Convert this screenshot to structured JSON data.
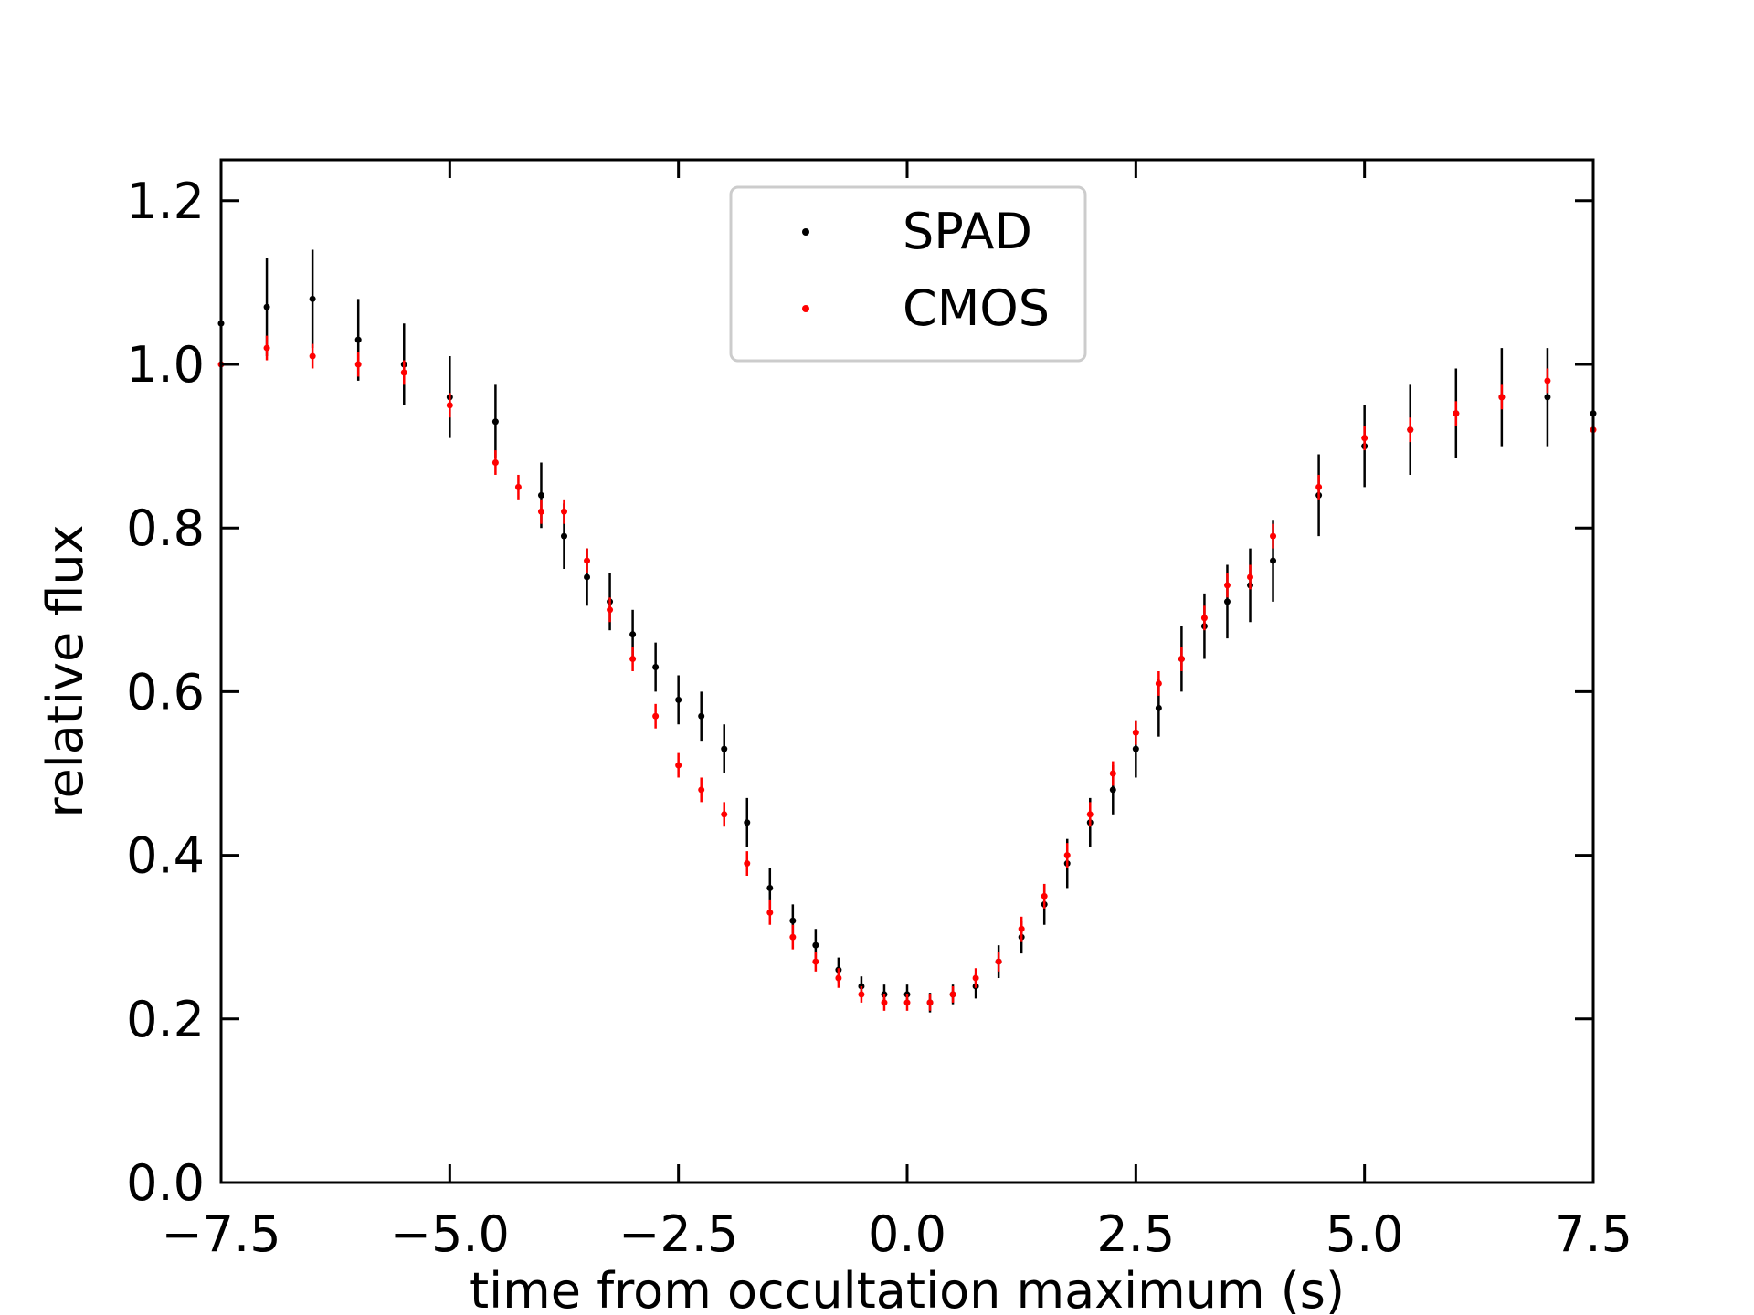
{
  "chart_data": {
    "type": "scatter",
    "title": "",
    "xlabel": "time from occultation maximum (s)",
    "ylabel": "relative flux",
    "xlim": [
      -7.5,
      7.5
    ],
    "ylim": [
      0.0,
      1.25
    ],
    "xticks": [
      -7.5,
      -5.0,
      -2.5,
      0.0,
      2.5,
      5.0,
      7.5
    ],
    "xtick_labels": [
      "−7.5",
      "−5.0",
      "−2.5",
      "0.0",
      "2.5",
      "5.0",
      "7.5"
    ],
    "yticks": [
      0.0,
      0.2,
      0.4,
      0.6,
      0.8,
      1.0,
      1.2
    ],
    "ytick_labels": [
      "0.0",
      "0.2",
      "0.4",
      "0.6",
      "0.8",
      "1.0",
      "1.2"
    ],
    "legend_position": "top-center",
    "series": [
      {
        "name": "SPAD",
        "color": "#000000",
        "x": [
          -7.5,
          -7.0,
          -6.5,
          -6.0,
          -5.5,
          -5.0,
          -4.5,
          -4.0,
          -3.75,
          -3.5,
          -3.25,
          -3.0,
          -2.75,
          -2.5,
          -2.25,
          -2.0,
          -1.75,
          -1.5,
          -1.25,
          -1.0,
          -0.75,
          -0.5,
          -0.25,
          0.0,
          0.25,
          0.5,
          0.75,
          1.0,
          1.25,
          1.5,
          1.75,
          2.0,
          2.25,
          2.5,
          2.75,
          3.0,
          3.25,
          3.5,
          3.75,
          4.0,
          4.5,
          5.0,
          5.5,
          6.0,
          6.5,
          7.0,
          7.5
        ],
        "y": [
          1.05,
          1.07,
          1.08,
          1.03,
          1.0,
          0.96,
          0.93,
          0.84,
          0.79,
          0.74,
          0.71,
          0.67,
          0.63,
          0.59,
          0.57,
          0.53,
          0.44,
          0.36,
          0.32,
          0.29,
          0.26,
          0.24,
          0.23,
          0.23,
          0.22,
          0.23,
          0.24,
          0.27,
          0.3,
          0.34,
          0.39,
          0.44,
          0.48,
          0.53,
          0.58,
          0.64,
          0.68,
          0.71,
          0.73,
          0.76,
          0.84,
          0.9,
          0.92,
          0.94,
          0.96,
          0.96,
          0.94
        ],
        "yerr": [
          0.06,
          0.06,
          0.06,
          0.05,
          0.05,
          0.05,
          0.045,
          0.04,
          0.04,
          0.035,
          0.035,
          0.03,
          0.03,
          0.03,
          0.03,
          0.03,
          0.03,
          0.025,
          0.02,
          0.02,
          0.015,
          0.012,
          0.012,
          0.012,
          0.012,
          0.012,
          0.015,
          0.02,
          0.02,
          0.025,
          0.03,
          0.03,
          0.03,
          0.035,
          0.035,
          0.04,
          0.04,
          0.045,
          0.045,
          0.05,
          0.05,
          0.05,
          0.055,
          0.055,
          0.06,
          0.06,
          0.06
        ]
      },
      {
        "name": "CMOS",
        "color": "#ff0000",
        "x": [
          -7.5,
          -7.0,
          -6.5,
          -6.0,
          -5.5,
          -5.0,
          -4.5,
          -4.25,
          -4.0,
          -3.75,
          -3.5,
          -3.25,
          -3.0,
          -2.75,
          -2.5,
          -2.25,
          -2.0,
          -1.75,
          -1.5,
          -1.25,
          -1.0,
          -0.75,
          -0.5,
          -0.25,
          0.0,
          0.25,
          0.5,
          0.75,
          1.0,
          1.25,
          1.5,
          1.75,
          2.0,
          2.25,
          2.5,
          2.75,
          3.0,
          3.25,
          3.5,
          3.75,
          4.0,
          4.5,
          5.0,
          5.5,
          6.0,
          6.5,
          7.0,
          7.5
        ],
        "y": [
          1.0,
          1.02,
          1.01,
          1.0,
          0.99,
          0.95,
          0.88,
          0.85,
          0.82,
          0.82,
          0.76,
          0.7,
          0.64,
          0.57,
          0.51,
          0.48,
          0.45,
          0.39,
          0.33,
          0.3,
          0.27,
          0.25,
          0.23,
          0.22,
          0.22,
          0.22,
          0.23,
          0.25,
          0.27,
          0.31,
          0.35,
          0.4,
          0.45,
          0.5,
          0.55,
          0.61,
          0.64,
          0.69,
          0.73,
          0.74,
          0.79,
          0.85,
          0.91,
          0.92,
          0.94,
          0.96,
          0.98,
          0.92
        ],
        "yerr": [
          0.015,
          0.015,
          0.015,
          0.015,
          0.015,
          0.015,
          0.015,
          0.015,
          0.015,
          0.015,
          0.015,
          0.015,
          0.015,
          0.015,
          0.015,
          0.015,
          0.015,
          0.015,
          0.015,
          0.015,
          0.012,
          0.012,
          0.01,
          0.01,
          0.01,
          0.01,
          0.01,
          0.012,
          0.012,
          0.015,
          0.015,
          0.015,
          0.015,
          0.015,
          0.015,
          0.015,
          0.015,
          0.015,
          0.015,
          0.015,
          0.015,
          0.015,
          0.015,
          0.015,
          0.015,
          0.015,
          0.015,
          0.015
        ]
      }
    ]
  }
}
